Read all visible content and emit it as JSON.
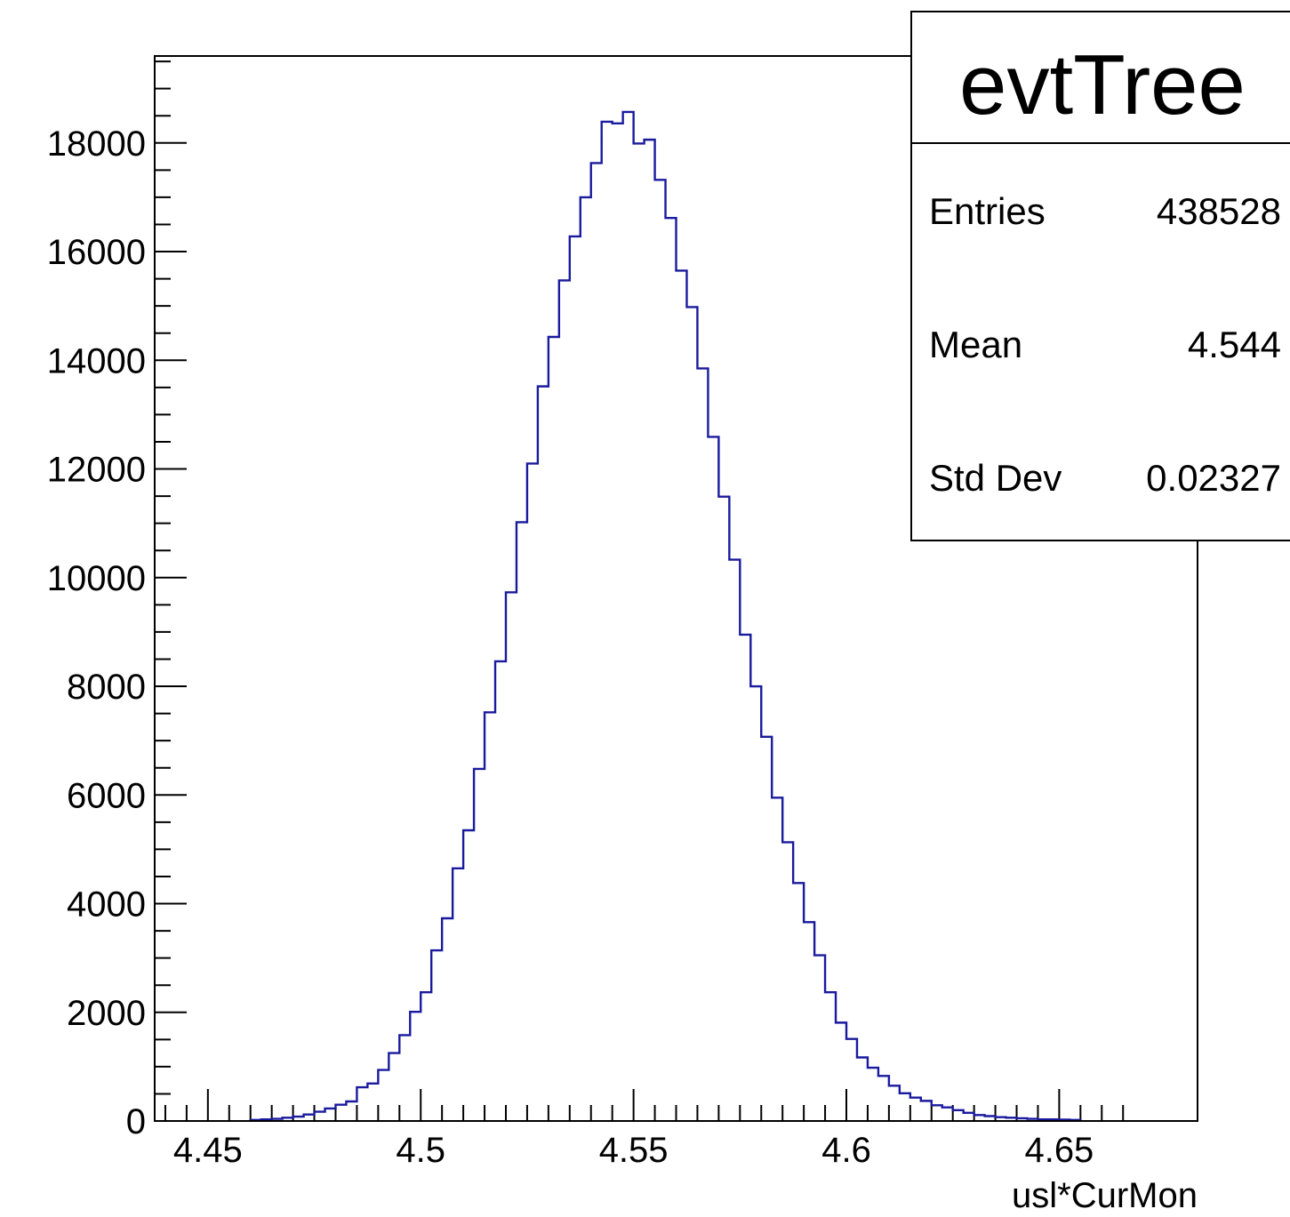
{
  "chart_data": {
    "type": "bar",
    "title": "",
    "xlabel": "usl*CurMon",
    "ylabel": "",
    "xlim": [
      4.4375,
      4.6825
    ],
    "ylim": [
      0,
      19600
    ],
    "bin_width": 0.0025,
    "first_bin_low_edge": 4.46,
    "values": [
      20,
      30,
      40,
      60,
      80,
      120,
      170,
      230,
      300,
      360,
      620,
      690,
      940,
      1250,
      1580,
      2010,
      2370,
      3140,
      3730,
      4650,
      5350,
      6480,
      7520,
      8460,
      9730,
      11020,
      12100,
      13520,
      14430,
      15470,
      16280,
      17000,
      17630,
      18390,
      18360,
      18570,
      17990,
      18060,
      17320,
      16620,
      15650,
      14980,
      13850,
      12590,
      11490,
      10330,
      8950,
      8000,
      7070,
      5950,
      5130,
      4380,
      3660,
      3050,
      2370,
      1810,
      1510,
      1170,
      980,
      830,
      650,
      510,
      430,
      370,
      290,
      250,
      200,
      150,
      110,
      90,
      70,
      60,
      50,
      40,
      30,
      30,
      25,
      20
    ],
    "x_ticks": [
      {
        "value": 4.45,
        "label": "4.45"
      },
      {
        "value": 4.5,
        "label": "4.5"
      },
      {
        "value": 4.55,
        "label": "4.55"
      },
      {
        "value": 4.6,
        "label": "4.6"
      },
      {
        "value": 4.65,
        "label": "4.65"
      }
    ],
    "y_ticks": [
      {
        "value": 0,
        "label": "0"
      },
      {
        "value": 2000,
        "label": "2000"
      },
      {
        "value": 4000,
        "label": "4000"
      },
      {
        "value": 6000,
        "label": "6000"
      },
      {
        "value": 8000,
        "label": "8000"
      },
      {
        "value": 10000,
        "label": "10000"
      },
      {
        "value": 12000,
        "label": "12000"
      },
      {
        "value": 14000,
        "label": "14000"
      },
      {
        "value": 16000,
        "label": "16000"
      },
      {
        "value": 18000,
        "label": "18000"
      }
    ],
    "line_color": "#1a1a9e",
    "legend_placement": "top-right",
    "stats_box": {
      "title": "evtTree",
      "rows": [
        {
          "label": "Entries",
          "value": "438528"
        },
        {
          "label": "Mean",
          "value": "4.544"
        },
        {
          "label": "Std Dev",
          "value": "0.02327"
        }
      ]
    }
  }
}
